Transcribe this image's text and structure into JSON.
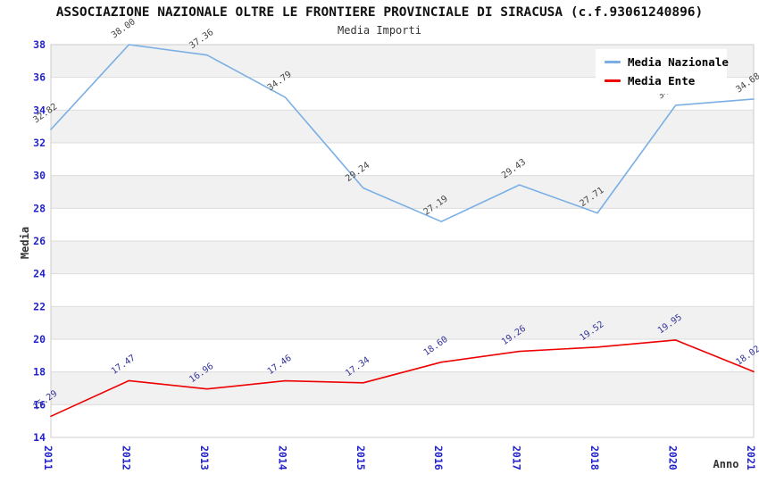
{
  "header": {
    "title": "ASSOCIAZIONE NAZIONALE OLTRE LE FRONTIERE PROVINCIALE DI SIRACUSA (c.f.93061240896)",
    "subtitle": "Media Importi"
  },
  "legend": {
    "items": [
      {
        "label": "Media Nazionale",
        "color": "#7aafe5"
      },
      {
        "label": "Media Ente",
        "color": "#ee0000"
      }
    ],
    "position": "top-right"
  },
  "chart_data": {
    "type": "line",
    "x": [
      "2011",
      "2012",
      "2013",
      "2014",
      "2015",
      "2016",
      "2017",
      "2018",
      "2020",
      "2021"
    ],
    "series": [
      {
        "name": "Media Nazionale",
        "color": "#7aafe5",
        "values": [
          32.82,
          38.0,
          37.36,
          34.79,
          29.24,
          27.19,
          29.43,
          27.71,
          34.29,
          34.68
        ],
        "label_color": "#444444"
      },
      {
        "name": "Media Ente",
        "color": "#ee0000",
        "values": [
          15.29,
          17.47,
          16.96,
          17.46,
          17.34,
          18.6,
          19.26,
          19.52,
          19.95,
          18.02
        ],
        "label_color": "#333399"
      }
    ],
    "title": "Media Importi",
    "xlabel": "Anno",
    "ylabel": "Media",
    "ylim": [
      14,
      38
    ],
    "ytick_step": 2,
    "yticks": [
      14,
      16,
      18,
      20,
      22,
      24,
      26,
      28,
      30,
      32,
      34,
      36,
      38
    ],
    "grid": "horizontal, alternating shaded bands",
    "legend_position": "top-right"
  },
  "colors": {
    "band": "#f1f1f1",
    "grid": "#dcdcdc",
    "border": "#cccccc",
    "tick_label": "#2222cc",
    "axis_title": "#333333"
  }
}
